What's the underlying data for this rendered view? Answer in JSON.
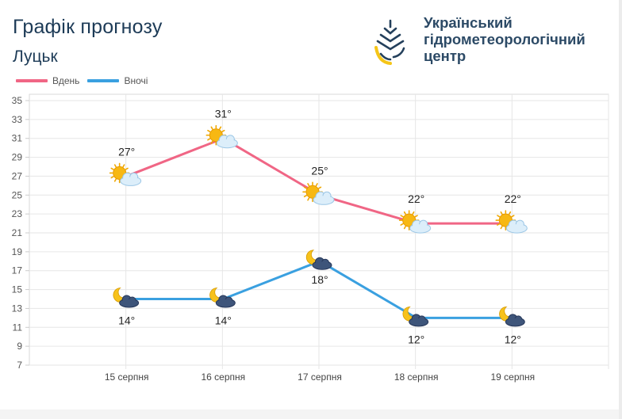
{
  "header": {
    "title": "Графік прогнозу",
    "city": "Луцьк",
    "org_lines": [
      "Український",
      "гідрометеорологічний",
      "центр"
    ]
  },
  "legend": [
    {
      "label": "Вдень",
      "color": "#f06685"
    },
    {
      "label": "Вночі",
      "color": "#3aa0e0"
    }
  ],
  "chart_data": {
    "type": "line",
    "categories": [
      "15 серпня",
      "16 серпня",
      "17 серпня",
      "18 серпня",
      "19 серпня"
    ],
    "series": [
      {
        "name": "Вдень",
        "color": "#f06685",
        "values": [
          27,
          31,
          25,
          22,
          22
        ],
        "icon": "sun-cloud-icon",
        "label_pos": "above"
      },
      {
        "name": "Вночі",
        "color": "#3aa0e0",
        "values": [
          14,
          14,
          18,
          12,
          12
        ],
        "icon": "moon-cloud-icon",
        "label_pos": "below"
      }
    ],
    "ylim": [
      7,
      35
    ],
    "yticks": [
      7,
      9,
      11,
      13,
      15,
      17,
      19,
      21,
      23,
      25,
      27,
      29,
      31,
      33,
      35
    ],
    "unit": "°",
    "grid": true
  }
}
